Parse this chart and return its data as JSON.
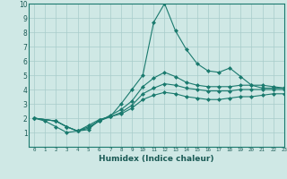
{
  "xlabel": "Humidex (Indice chaleur)",
  "ylabel": "",
  "background_color": "#cfe8e5",
  "grid_color": "#a8ccca",
  "line_color": "#1a7a6e",
  "xlim": [
    -0.5,
    23
  ],
  "ylim": [
    0,
    10
  ],
  "xticks": [
    0,
    1,
    2,
    3,
    4,
    5,
    6,
    7,
    8,
    9,
    10,
    11,
    12,
    13,
    14,
    15,
    16,
    17,
    18,
    19,
    20,
    21,
    22,
    23
  ],
  "yticks": [
    1,
    2,
    3,
    4,
    5,
    6,
    7,
    8,
    9,
    10
  ],
  "series": [
    {
      "x": [
        0,
        1,
        2,
        3,
        4,
        5,
        6,
        7,
        8,
        9,
        10,
        11,
        12,
        13,
        14,
        15,
        16,
        17,
        18,
        19,
        20,
        21,
        22,
        23
      ],
      "y": [
        2.0,
        1.8,
        1.4,
        1.0,
        1.1,
        1.2,
        1.9,
        2.1,
        3.0,
        4.0,
        5.0,
        8.7,
        10.0,
        8.1,
        6.8,
        5.8,
        5.3,
        5.2,
        5.5,
        4.9,
        4.3,
        4.1,
        4.1,
        4.1
      ],
      "marker": "D",
      "markersize": 2.0
    },
    {
      "x": [
        0,
        2,
        3,
        4,
        5,
        6,
        7,
        8,
        9,
        10,
        11,
        12,
        13,
        14,
        15,
        16,
        17,
        18,
        19,
        20,
        21,
        22,
        23
      ],
      "y": [
        2.0,
        1.8,
        1.4,
        1.1,
        1.3,
        1.8,
        2.2,
        2.6,
        3.2,
        4.2,
        4.8,
        5.2,
        4.9,
        4.5,
        4.3,
        4.2,
        4.2,
        4.2,
        4.3,
        4.3,
        4.3,
        4.2,
        4.1
      ],
      "marker": "D",
      "markersize": 2.0
    },
    {
      "x": [
        0,
        2,
        3,
        4,
        5,
        6,
        7,
        8,
        9,
        10,
        11,
        12,
        13,
        14,
        15,
        16,
        17,
        18,
        19,
        20,
        21,
        22,
        23
      ],
      "y": [
        2.0,
        1.8,
        1.4,
        1.1,
        1.4,
        1.8,
        2.1,
        2.4,
        2.9,
        3.7,
        4.1,
        4.4,
        4.3,
        4.1,
        4.0,
        3.9,
        3.9,
        3.9,
        4.0,
        4.0,
        4.0,
        4.0,
        4.0
      ],
      "marker": "D",
      "markersize": 2.0
    },
    {
      "x": [
        0,
        2,
        3,
        4,
        5,
        6,
        7,
        8,
        9,
        10,
        11,
        12,
        13,
        14,
        15,
        16,
        17,
        18,
        19,
        20,
        21,
        22,
        23
      ],
      "y": [
        2.0,
        1.8,
        1.4,
        1.1,
        1.5,
        1.9,
        2.1,
        2.3,
        2.7,
        3.3,
        3.6,
        3.8,
        3.7,
        3.5,
        3.4,
        3.3,
        3.3,
        3.4,
        3.5,
        3.5,
        3.6,
        3.7,
        3.7
      ],
      "marker": "D",
      "markersize": 2.0
    }
  ]
}
